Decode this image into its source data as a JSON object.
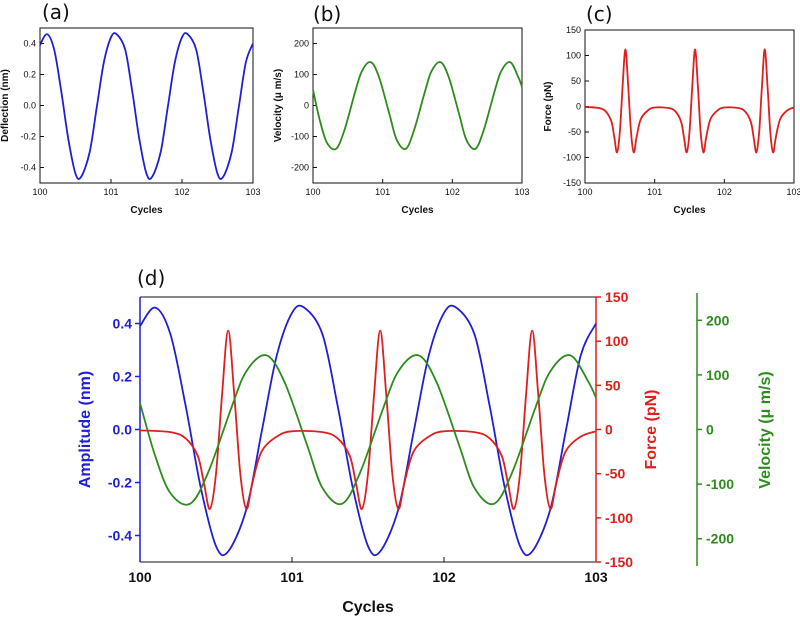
{
  "colors": {
    "deflection": "#1f1fd6",
    "velocity": "#2e8b1e",
    "force": "#e01e1e",
    "axis": "#111111"
  },
  "chart_data": [
    {
      "type": "line",
      "panel_label": "(a)",
      "xlabel": "Cycles",
      "ylabel": "Deflection (nm)",
      "xlim": [
        100,
        103
      ],
      "ylim": [
        -0.5,
        0.5
      ],
      "x_ticks": [
        "100",
        "101",
        "102",
        "103"
      ],
      "y_ticks": [
        "-0.4",
        "-0.2",
        "0.0",
        "0.2",
        "0.4"
      ],
      "series": [
        {
          "color": "#1f1fd6",
          "x": [
            100.0,
            100.1,
            100.2,
            100.3,
            100.4,
            100.5,
            100.58,
            100.7,
            100.8,
            100.9,
            101.0,
            101.08,
            101.2,
            101.3,
            101.4,
            101.5,
            101.58,
            101.7,
            101.8,
            101.9,
            102.0,
            102.08,
            102.2,
            102.3,
            102.4,
            102.5,
            102.58,
            102.7,
            102.8,
            102.9,
            103.0
          ],
          "y": [
            0.39,
            0.46,
            0.36,
            0.09,
            -0.22,
            -0.44,
            -0.46,
            -0.3,
            -0.01,
            0.28,
            0.44,
            0.46,
            0.36,
            0.09,
            -0.22,
            -0.44,
            -0.46,
            -0.3,
            -0.01,
            0.28,
            0.44,
            0.46,
            0.36,
            0.09,
            -0.22,
            -0.44,
            -0.46,
            -0.3,
            -0.01,
            0.28,
            0.4
          ]
        }
      ]
    },
    {
      "type": "line",
      "panel_label": "(b)",
      "xlabel": "Cycles",
      "ylabel": "Velocity (μ m/s)",
      "xlim": [
        100,
        103
      ],
      "ylim": [
        -250,
        250
      ],
      "x_ticks": [
        "100",
        "101",
        "102",
        "103"
      ],
      "y_ticks": [
        "-200",
        "-100",
        "0",
        "100",
        "200"
      ],
      "series": [
        {
          "color": "#2e8b1e",
          "x": [
            100.0,
            100.1,
            100.2,
            100.33,
            100.45,
            100.6,
            100.7,
            100.83,
            100.95,
            101.1,
            101.2,
            101.33,
            101.45,
            101.6,
            101.7,
            101.83,
            101.95,
            102.1,
            102.2,
            102.33,
            102.45,
            102.6,
            102.7,
            102.83,
            102.95,
            103.0
          ],
          "y": [
            50,
            -50,
            -120,
            -140,
            -80,
            40,
            110,
            140,
            90,
            -30,
            -110,
            -140,
            -80,
            40,
            110,
            140,
            90,
            -30,
            -110,
            -140,
            -80,
            40,
            110,
            140,
            90,
            60
          ]
        }
      ]
    },
    {
      "type": "line",
      "panel_label": "(c)",
      "xlabel": "Cycles",
      "ylabel": "Force (pN)",
      "xlim": [
        100,
        103
      ],
      "ylim": [
        -150,
        150
      ],
      "x_ticks": [
        "100",
        "101",
        "102",
        "103"
      ],
      "y_ticks": [
        "-150",
        "-100",
        "-50",
        "0",
        "50",
        "100",
        "150"
      ],
      "series": [
        {
          "color": "#e01e1e",
          "x": [
            100.0,
            100.2,
            100.3,
            100.38,
            100.42,
            100.46,
            100.5,
            100.54,
            100.58,
            100.62,
            100.66,
            100.7,
            100.74,
            100.8,
            100.9,
            101.0,
            101.2,
            101.3,
            101.38,
            101.42,
            101.46,
            101.5,
            101.54,
            101.58,
            101.62,
            101.66,
            101.7,
            101.74,
            101.8,
            101.9,
            102.0,
            102.2,
            102.3,
            102.38,
            102.42,
            102.46,
            102.5,
            102.54,
            102.58,
            102.62,
            102.66,
            102.7,
            102.74,
            102.8,
            102.9,
            103.0
          ],
          "y": [
            -1,
            -3,
            -10,
            -30,
            -60,
            -90,
            -50,
            40,
            112,
            40,
            -50,
            -90,
            -60,
            -25,
            -8,
            -2,
            -3,
            -10,
            -30,
            -60,
            -90,
            -50,
            40,
            112,
            40,
            -50,
            -90,
            -60,
            -25,
            -8,
            -2,
            -3,
            -10,
            -30,
            -60,
            -90,
            -50,
            40,
            112,
            40,
            -50,
            -90,
            -60,
            -25,
            -8,
            -2
          ]
        }
      ]
    },
    {
      "type": "line",
      "panel_label": "(d)",
      "xlabel": "Cycles",
      "xlim": [
        100,
        103
      ],
      "x_ticks": [
        "100",
        "101",
        "102",
        "103"
      ],
      "axes": [
        {
          "side": "left",
          "label": "Amplitude (nm)",
          "color": "#1f1fd6",
          "ylim": [
            -0.5,
            0.5
          ],
          "ticks": [
            "-0.4",
            "-0.2",
            "0.0",
            "0.2",
            "0.4"
          ]
        },
        {
          "side": "right",
          "label": "Force (pN)",
          "color": "#e01e1e",
          "ylim": [
            -150,
            150
          ],
          "ticks": [
            "-150",
            "-100",
            "-50",
            "0",
            "50",
            "100",
            "150"
          ]
        },
        {
          "side": "right-offset",
          "label": "Velocity (μ m/s)",
          "color": "#2e8b1e",
          "ylim": [
            -250,
            250
          ],
          "ticks": [
            "-200",
            "-100",
            "0",
            "100",
            "200"
          ]
        }
      ],
      "series": [
        {
          "axis": 0,
          "color": "#1f1fd6",
          "x": [
            100.0,
            100.1,
            100.2,
            100.3,
            100.4,
            100.5,
            100.58,
            100.7,
            100.8,
            100.9,
            101.0,
            101.08,
            101.2,
            101.3,
            101.4,
            101.5,
            101.58,
            101.7,
            101.8,
            101.9,
            102.0,
            102.08,
            102.2,
            102.3,
            102.4,
            102.5,
            102.58,
            102.7,
            102.8,
            102.9,
            103.0
          ],
          "y": [
            0.39,
            0.46,
            0.36,
            0.09,
            -0.22,
            -0.44,
            -0.46,
            -0.3,
            -0.01,
            0.28,
            0.44,
            0.46,
            0.36,
            0.09,
            -0.22,
            -0.44,
            -0.46,
            -0.3,
            -0.01,
            0.28,
            0.44,
            0.46,
            0.36,
            0.09,
            -0.22,
            -0.44,
            -0.46,
            -0.3,
            -0.01,
            0.28,
            0.4
          ]
        },
        {
          "axis": 1,
          "color": "#e01e1e",
          "x": [
            100.0,
            100.2,
            100.3,
            100.38,
            100.42,
            100.46,
            100.5,
            100.54,
            100.58,
            100.62,
            100.66,
            100.7,
            100.74,
            100.8,
            100.9,
            101.0,
            101.2,
            101.3,
            101.38,
            101.42,
            101.46,
            101.5,
            101.54,
            101.58,
            101.62,
            101.66,
            101.7,
            101.74,
            101.8,
            101.9,
            102.0,
            102.2,
            102.3,
            102.38,
            102.42,
            102.46,
            102.5,
            102.54,
            102.58,
            102.62,
            102.66,
            102.7,
            102.74,
            102.8,
            102.9,
            103.0
          ],
          "y": [
            -1,
            -3,
            -10,
            -30,
            -60,
            -90,
            -50,
            40,
            112,
            40,
            -50,
            -90,
            -60,
            -25,
            -8,
            -2,
            -3,
            -10,
            -30,
            -60,
            -90,
            -50,
            40,
            112,
            40,
            -50,
            -90,
            -60,
            -25,
            -8,
            -2,
            -3,
            -10,
            -30,
            -60,
            -90,
            -50,
            40,
            112,
            40,
            -50,
            -90,
            -60,
            -25,
            -8,
            -2
          ]
        },
        {
          "axis": 2,
          "color": "#2e8b1e",
          "x": [
            100.0,
            100.1,
            100.2,
            100.33,
            100.45,
            100.6,
            100.7,
            100.83,
            100.95,
            101.1,
            101.2,
            101.33,
            101.45,
            101.6,
            101.7,
            101.83,
            101.95,
            102.1,
            102.2,
            102.33,
            102.45,
            102.6,
            102.7,
            102.83,
            102.95,
            103.0
          ],
          "y": [
            50,
            -50,
            -120,
            -140,
            -80,
            40,
            110,
            140,
            90,
            -30,
            -110,
            -140,
            -80,
            40,
            110,
            140,
            90,
            -30,
            -110,
            -140,
            -80,
            40,
            110,
            140,
            90,
            60
          ]
        }
      ]
    }
  ]
}
